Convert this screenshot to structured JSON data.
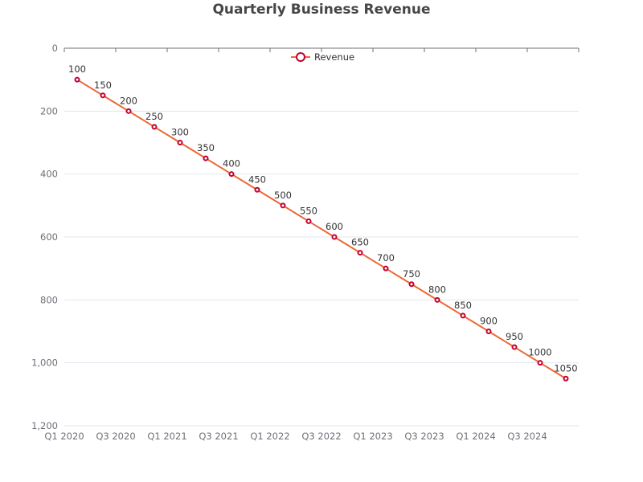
{
  "chart_data": {
    "type": "line",
    "title": "Quarterly Business Revenue",
    "xlabel": "",
    "ylabel": "",
    "x_tick_labels": [
      "Q1 2020",
      "Q3 2020",
      "Q1 2021",
      "Q3 2021",
      "Q1 2022",
      "Q3 2022",
      "Q1 2023",
      "Q3 2023",
      "Q1 2024",
      "Q3 2024"
    ],
    "ylim": [
      0,
      1200
    ],
    "y_inverted": true,
    "y_ticks": [
      0,
      200,
      400,
      600,
      800,
      1000,
      1200
    ],
    "y_tick_labels": [
      "0",
      "200",
      "400",
      "600",
      "800",
      "1,000",
      "1,200"
    ],
    "grid": true,
    "legend": {
      "placement": "top-center"
    },
    "series": [
      {
        "name": "Revenue",
        "color": "#ee6633",
        "marker_color": "#c3002f",
        "values": [
          100,
          150,
          200,
          250,
          300,
          350,
          400,
          450,
          500,
          550,
          600,
          650,
          700,
          750,
          800,
          850,
          900,
          950,
          1000,
          1050
        ],
        "data_labels": [
          "100",
          "150",
          "200",
          "250",
          "300",
          "350",
          "400",
          "450",
          "500",
          "550",
          "600",
          "650",
          "700",
          "750",
          "800",
          "850",
          "900",
          "950",
          "1000",
          "1050"
        ]
      }
    ]
  }
}
